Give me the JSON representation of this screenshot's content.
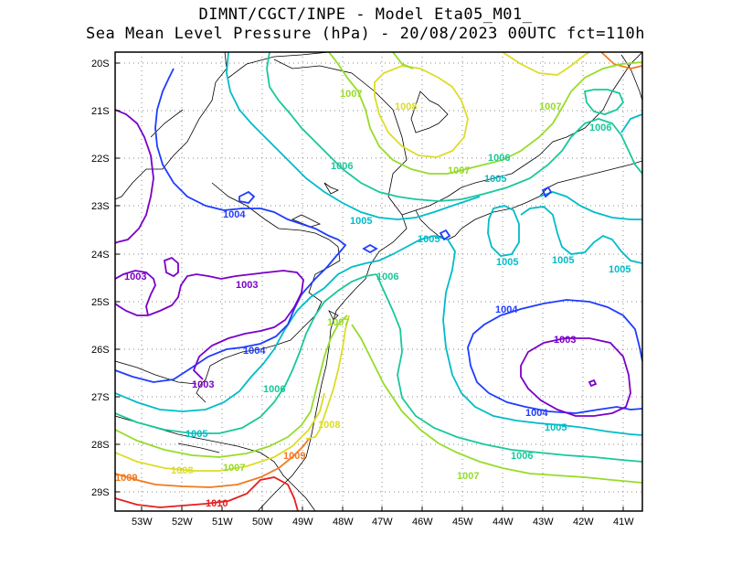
{
  "title": {
    "line1": "DIMNT/CGCT/INPE -  Model Eta05_M01_",
    "line2": "Sea Mean Level Pressure (hPa) - 20/08/2023 00UTC fct=110h"
  },
  "map": {
    "lat_labels": [
      "20S",
      "21S",
      "22S",
      "23S",
      "24S",
      "25S",
      "26S",
      "27S",
      "28S",
      "29S"
    ],
    "lon_labels": [
      "53W",
      "52W",
      "51W",
      "50W",
      "49W",
      "48W",
      "47W",
      "46W",
      "45W",
      "44W",
      "43W",
      "42W",
      "41W"
    ],
    "contour_colors": {
      "1003": "#7a00c8",
      "1004": "#1e3cff",
      "1005": "#00bcc8",
      "1006": "#18c89a",
      "1007": "#96dc28",
      "1008": "#dcdc28",
      "1009": "#f07a1e",
      "1010": "#e61e1e"
    },
    "contour_labels": [
      {
        "id": "l1",
        "text": "1007",
        "color": "#96dc28"
      },
      {
        "id": "l2",
        "text": "1008",
        "color": "#dcdc28"
      },
      {
        "id": "l3",
        "text": "1007",
        "color": "#96dc28"
      },
      {
        "id": "l4",
        "text": "1006",
        "color": "#18c89a"
      },
      {
        "id": "l5",
        "text": "1006",
        "color": "#18c89a"
      },
      {
        "id": "l6",
        "text": "1006",
        "color": "#18c89a"
      },
      {
        "id": "l7",
        "text": "1007",
        "color": "#96dc28"
      },
      {
        "id": "l8",
        "text": "1005",
        "color": "#00bcc8"
      },
      {
        "id": "l9",
        "text": "1004",
        "color": "#1e3cff"
      },
      {
        "id": "l10",
        "text": "1005",
        "color": "#00bcc8"
      },
      {
        "id": "l11",
        "text": "1005",
        "color": "#00bcc8"
      },
      {
        "id": "l12",
        "text": "1005",
        "color": "#00bcc8"
      },
      {
        "id": "l13",
        "text": "1005",
        "color": "#00bcc8"
      },
      {
        "id": "l14",
        "text": "1005",
        "color": "#00bcc8"
      },
      {
        "id": "l15",
        "text": "1003",
        "color": "#7a00c8"
      },
      {
        "id": "l16",
        "text": "1003",
        "color": "#7a00c8"
      },
      {
        "id": "l17",
        "text": "1006",
        "color": "#18c89a"
      },
      {
        "id": "l18",
        "text": "1004",
        "color": "#1e3cff"
      },
      {
        "id": "l19",
        "text": "1007",
        "color": "#96dc28"
      },
      {
        "id": "l20",
        "text": "1004",
        "color": "#1e3cff"
      },
      {
        "id": "l21",
        "text": "1003",
        "color": "#7a00c8"
      },
      {
        "id": "l22",
        "text": "1003",
        "color": "#7a00c8"
      },
      {
        "id": "l23",
        "text": "1006",
        "color": "#18c89a"
      },
      {
        "id": "l24",
        "text": "1004",
        "color": "#1e3cff"
      },
      {
        "id": "l25",
        "text": "1005",
        "color": "#00bcc8"
      },
      {
        "id": "l26",
        "text": "1005",
        "color": "#00bcc8"
      },
      {
        "id": "l27",
        "text": "1008",
        "color": "#dcdc28"
      },
      {
        "id": "l28",
        "text": "1006",
        "color": "#18c89a"
      },
      {
        "id": "l29",
        "text": "1008",
        "color": "#dcdc28"
      },
      {
        "id": "l30",
        "text": "1007",
        "color": "#96dc28"
      },
      {
        "id": "l31",
        "text": "1009",
        "color": "#f07a1e"
      },
      {
        "id": "l32",
        "text": "1007",
        "color": "#96dc28"
      },
      {
        "id": "l33",
        "text": "1009",
        "color": "#f07a1e"
      },
      {
        "id": "l34",
        "text": "1010",
        "color": "#e61e1e"
      }
    ]
  }
}
